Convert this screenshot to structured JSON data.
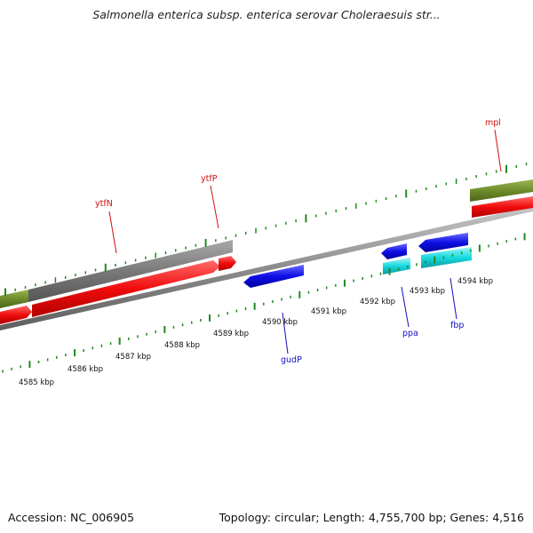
{
  "title": "Salmonella enterica subsp. enterica serovar Choleraesuis str...",
  "footer": {
    "accession": "Accession: NC_006905",
    "topology": "Topology: circular; Length: 4,755,700 bp; Genes: 4,516"
  },
  "colors": {
    "forward_cds": "#f00c0c",
    "reverse_cds": "#0f0fe6",
    "rna": "#16d9df",
    "cog_gray": "#7a7a7a",
    "cog_olive": "#6e8c2b",
    "ruler_ticks": "#1f8a1f",
    "label_forward": "#d01010",
    "label_reverse": "#1010c0",
    "backbone": "#8c8c8c"
  },
  "scale": {
    "labels": [
      "4585 kbp",
      "4586 kbp",
      "4587 kbp",
      "4588 kbp",
      "4589 kbp",
      "4590 kbp",
      "4591 kbp",
      "4592 kbp",
      "4593 kbp",
      "4594 kbp"
    ]
  },
  "genes": {
    "forward": [
      "ytfN",
      "ytfP",
      "mpl"
    ],
    "reverse": [
      "gudP",
      "ppa",
      "fbp"
    ]
  }
}
